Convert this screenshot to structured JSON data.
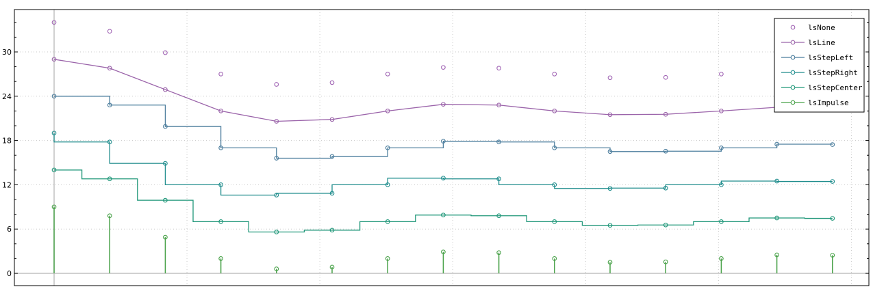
{
  "chart_data": {
    "type": "line",
    "title": "",
    "xlabel": "",
    "ylabel": "",
    "x": [
      0,
      1,
      2,
      3,
      4,
      5,
      6,
      7,
      8,
      9,
      10,
      11,
      12,
      13,
      14
    ],
    "ylim": [
      -1.7,
      35.7
    ],
    "xlim": [
      -0.72,
      14.65
    ],
    "y_ticks": [
      0,
      6,
      12,
      18,
      24,
      30
    ],
    "y_minor_step": 2,
    "x_grid_positions": [
      2.39,
      4.78,
      7.17,
      9.56,
      11.95,
      14.34
    ],
    "grid": true,
    "legend_position": "top-right",
    "series": [
      {
        "name": "lsNone",
        "style": "none",
        "color": "#a064b4",
        "values": [
          34.0,
          32.8,
          29.9,
          27.0,
          25.6,
          25.85,
          27.0,
          27.9,
          27.8,
          27.0,
          26.5,
          26.55,
          27.0,
          27.5,
          27.45
        ]
      },
      {
        "name": "lsLine",
        "style": "line",
        "color": "#9b64aa",
        "values": [
          29.0,
          27.8,
          24.9,
          22.0,
          20.6,
          20.85,
          22.0,
          22.9,
          22.8,
          22.0,
          21.5,
          21.55,
          22.0,
          22.5,
          22.45
        ]
      },
      {
        "name": "lsStepLeft",
        "style": "stepLeft",
        "color": "#4a7c9c",
        "values": [
          24.0,
          22.8,
          19.9,
          17.0,
          15.6,
          15.85,
          17.0,
          17.9,
          17.8,
          17.0,
          16.5,
          16.55,
          17.0,
          17.5,
          17.45
        ]
      },
      {
        "name": "lsStepRight",
        "style": "stepRight",
        "color": "#1e8c8c",
        "values": [
          19.0,
          17.8,
          14.9,
          12.0,
          10.6,
          10.85,
          12.0,
          12.9,
          12.8,
          12.0,
          11.5,
          11.55,
          12.0,
          12.5,
          12.45
        ]
      },
      {
        "name": "lsStepCenter",
        "style": "stepCenter",
        "color": "#1e9678",
        "values": [
          14.0,
          12.8,
          9.9,
          7.0,
          5.6,
          5.85,
          7.0,
          7.9,
          7.8,
          7.0,
          6.5,
          6.55,
          7.0,
          7.5,
          7.45
        ]
      },
      {
        "name": "lsImpulse",
        "style": "impulse",
        "color": "#46a046",
        "values": [
          9.0,
          7.8,
          4.9,
          2.0,
          0.6,
          0.85,
          2.0,
          2.9,
          2.8,
          2.0,
          1.5,
          1.55,
          2.0,
          2.5,
          2.45
        ]
      }
    ]
  }
}
